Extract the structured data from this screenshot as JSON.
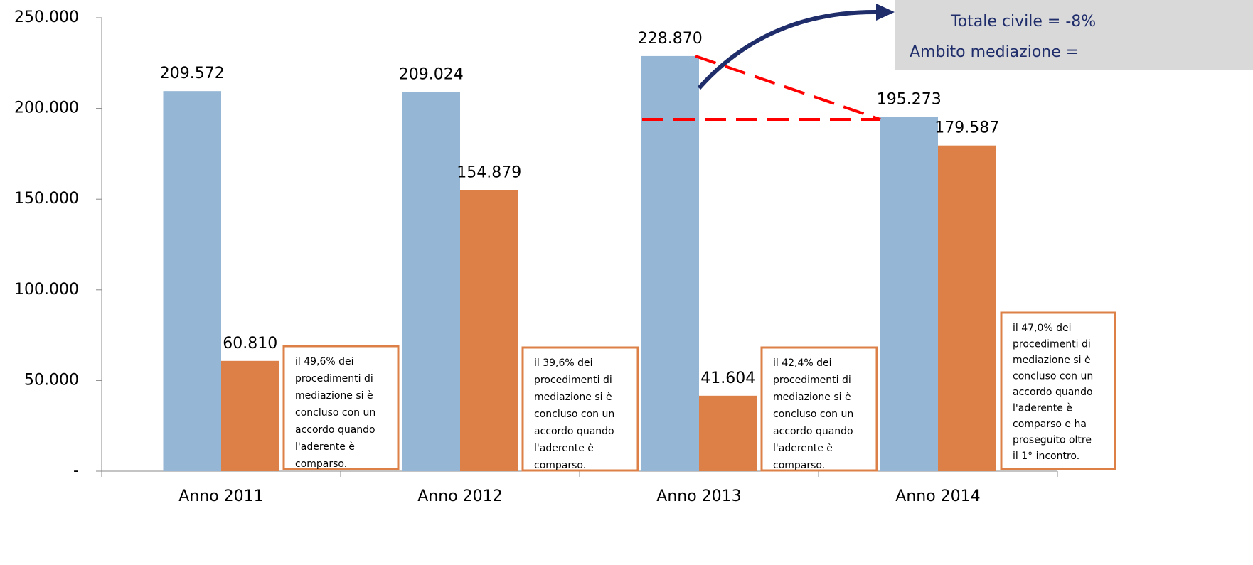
{
  "chart_data": {
    "type": "bar",
    "categories": [
      "Anno 2011",
      "Anno 2012",
      "Anno 2013",
      "Anno 2014"
    ],
    "series": [
      {
        "color": "#95b6d4",
        "values": [
          209572,
          209024,
          228870,
          195273
        ],
        "value_labels": [
          "209.572",
          "209.024",
          "228.870",
          "195.273"
        ]
      },
      {
        "color": "#dd8047",
        "values": [
          60810,
          154879,
          41604,
          179587
        ],
        "value_labels": [
          "60.810",
          "154.879",
          "41.604",
          "179.587"
        ]
      }
    ],
    "ylim": [
      0,
      250000
    ],
    "yticks": [
      {
        "value": 0,
        "label": "-"
      },
      {
        "value": 50000,
        "label": "50.000"
      },
      {
        "value": 100000,
        "label": "100.000"
      },
      {
        "value": 150000,
        "label": "150.000"
      },
      {
        "value": 200000,
        "label": "200.000"
      },
      {
        "value": 250000,
        "label": "250.000"
      }
    ],
    "callout": {
      "lines": [
        "Totale civile = -8%",
        "Ambito mediazione ="
      ]
    },
    "annotations": [
      {
        "lines": [
          "il 49,6%  dei",
          "procedimenti  di",
          "mediazione si è",
          "concluso con un",
          "accordo quando",
          "l'aderente  è",
          "comparso."
        ]
      },
      {
        "lines": [
          "il 39,6% dei",
          "procedimenti di",
          "mediazione si è",
          "concluso con un",
          "accordo quando",
          "l'aderente  è",
          "comparso."
        ]
      },
      {
        "lines": [
          "il 42,4% dei",
          "procedimenti di",
          "mediazione si è",
          "concluso con un",
          "accordo quando",
          "l'aderente  è",
          "comparso."
        ]
      },
      {
        "lines": [
          "il 47,0% dei",
          "procedimenti di",
          "mediazione si è",
          "concluso con un",
          "accordo quando",
          "l'aderente  è",
          "comparso  e  ha",
          "proseguito oltre",
          "il 1° incontro."
        ]
      }
    ]
  }
}
